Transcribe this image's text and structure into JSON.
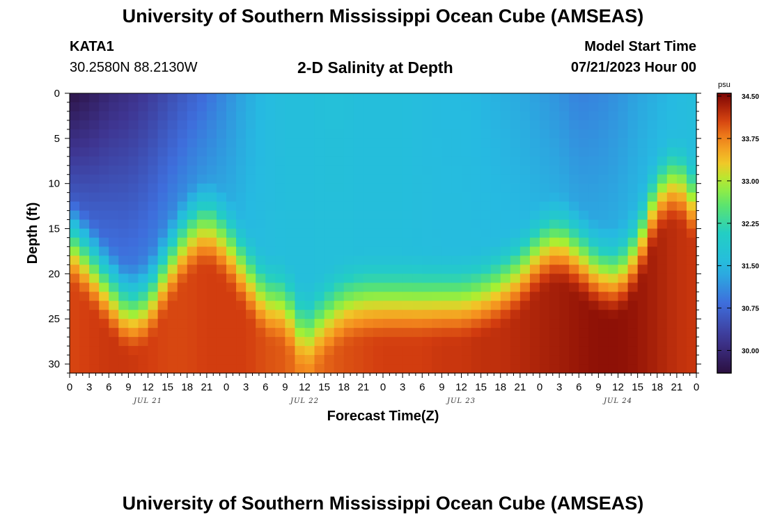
{
  "header": {
    "title": "University of Southern Mississippi Ocean Cube (AMSEAS)",
    "station": "KATA1",
    "coordinates": "30.2580N  88.2130W",
    "subtitle": "2-D Salinity at Depth",
    "model_start_label": "Model Start Time",
    "model_start_value": "07/21/2023 Hour 00"
  },
  "footer": {
    "title": "University of Southern Mississippi Ocean Cube (AMSEAS)"
  },
  "chart_data": {
    "type": "heatmap",
    "xlabel": "Forecast Time(Z)",
    "ylabel": "Depth (ft)",
    "x_range_hours": [
      0,
      96
    ],
    "x_tick_step_hours": 3,
    "x_tick_labels": [
      "0",
      "3",
      "6",
      "9",
      "12",
      "15",
      "18",
      "21",
      "0",
      "3",
      "6",
      "9",
      "12",
      "15",
      "18",
      "21",
      "0",
      "3",
      "6",
      "9",
      "12",
      "15",
      "18",
      "21",
      "0",
      "3",
      "6",
      "9",
      "12",
      "15",
      "18",
      "21",
      "0"
    ],
    "day_labels": [
      {
        "text": "JUL 21",
        "hour": 12
      },
      {
        "text": "JUL 22",
        "hour": 36
      },
      {
        "text": "JUL 23",
        "hour": 60
      },
      {
        "text": "JUL 24",
        "hour": 84
      }
    ],
    "y_range_ft": [
      0,
      31
    ],
    "y_ticks": [
      0,
      5,
      10,
      15,
      20,
      25,
      30
    ],
    "colorbar": {
      "unit": "psu",
      "min": 29.6,
      "max": 34.55,
      "ticks": [
        "30.00",
        "30.75",
        "31.50",
        "32.25",
        "33.00",
        "33.75",
        "34.50"
      ],
      "tick_values": [
        30.0,
        30.75,
        31.5,
        32.25,
        33.0,
        33.75,
        34.5
      ]
    },
    "halocline_depth_ft": {
      "hours": [
        0,
        3,
        6,
        9,
        12,
        15,
        18,
        21,
        24,
        27,
        30,
        33,
        36,
        39,
        42,
        45,
        48,
        51,
        54,
        57,
        60,
        63,
        66,
        69,
        72,
        75,
        78,
        81,
        84,
        87,
        90,
        93,
        96
      ],
      "values": [
        16,
        18.5,
        21.5,
        24,
        23,
        19,
        15.5,
        14,
        16,
        19.5,
        22.5,
        23,
        26.5,
        24.5,
        23,
        22.5,
        22.5,
        22.5,
        22.5,
        22.5,
        22.5,
        22,
        21,
        19.5,
        17,
        16,
        17.5,
        19.5,
        20,
        17,
        11,
        9,
        12
      ]
    },
    "surface_salinity_psu": {
      "hours": [
        0,
        3,
        6,
        9,
        12,
        15,
        18,
        21,
        24,
        27,
        30,
        33,
        36,
        39,
        42,
        45,
        48,
        51,
        54,
        57,
        60,
        63,
        66,
        69,
        72,
        75,
        78,
        81,
        84,
        87,
        90,
        93,
        96
      ],
      "values": [
        29.65,
        29.8,
        30.0,
        30.1,
        30.25,
        30.45,
        30.65,
        30.85,
        31.1,
        31.35,
        31.5,
        31.6,
        31.6,
        31.65,
        31.65,
        31.6,
        31.6,
        31.6,
        31.55,
        31.5,
        31.5,
        31.45,
        31.4,
        31.35,
        31.25,
        31.15,
        31.0,
        31.05,
        31.15,
        31.3,
        31.4,
        31.5,
        31.6
      ]
    },
    "bottom_salinity_psu": {
      "hours": [
        0,
        3,
        6,
        9,
        12,
        15,
        18,
        21,
        24,
        27,
        30,
        33,
        36,
        39,
        42,
        45,
        48,
        51,
        54,
        57,
        60,
        63,
        66,
        69,
        72,
        75,
        78,
        81,
        84,
        87,
        90,
        93,
        96
      ],
      "values": [
        34.05,
        34.1,
        34.15,
        34.15,
        34.1,
        34.05,
        34.05,
        34.1,
        34.1,
        34.1,
        34.0,
        33.95,
        33.7,
        33.9,
        34.0,
        34.05,
        34.1,
        34.1,
        34.1,
        34.15,
        34.15,
        34.2,
        34.2,
        34.25,
        34.3,
        34.35,
        34.4,
        34.45,
        34.45,
        34.4,
        34.3,
        34.2,
        34.15
      ]
    }
  }
}
